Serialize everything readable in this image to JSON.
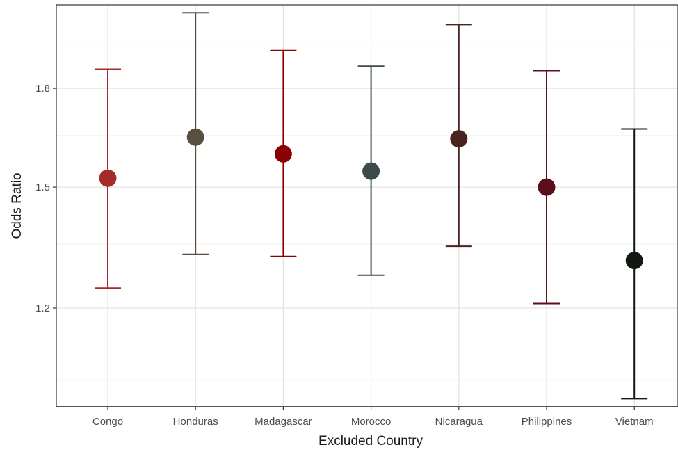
{
  "chart_data": {
    "type": "errorbar",
    "title": "",
    "xlabel": "Excluded Country",
    "ylabel": "Odds Ratio",
    "ylim": [
      1.0,
      2.1
    ],
    "log_y": true,
    "y_ticks": [
      1.2,
      1.5,
      1.8
    ],
    "y_tick_labels": [
      "1.2",
      "1.5",
      "1.8"
    ],
    "y_minor_ticks": [
      1.05,
      1.35,
      1.65,
      1.95
    ],
    "reference_line": 1.0,
    "grid": true,
    "legend": "none",
    "categories": [
      "Congo",
      "Honduras",
      "Madagascar",
      "Morocco",
      "Nicaragua",
      "Philippines",
      "Vietnam"
    ],
    "estimates": [
      1.525,
      1.645,
      1.595,
      1.545,
      1.64,
      1.5,
      1.31
    ],
    "lower": [
      1.245,
      1.325,
      1.32,
      1.275,
      1.345,
      1.21,
      1.015
    ],
    "upper": [
      1.865,
      2.07,
      1.93,
      1.875,
      2.025,
      1.86,
      1.67
    ],
    "colors": [
      "#a52a2a",
      "#5a4e40",
      "#8b0000",
      "#3b4a4b",
      "#4a2320",
      "#5a0f1a",
      "#111a11"
    ]
  }
}
